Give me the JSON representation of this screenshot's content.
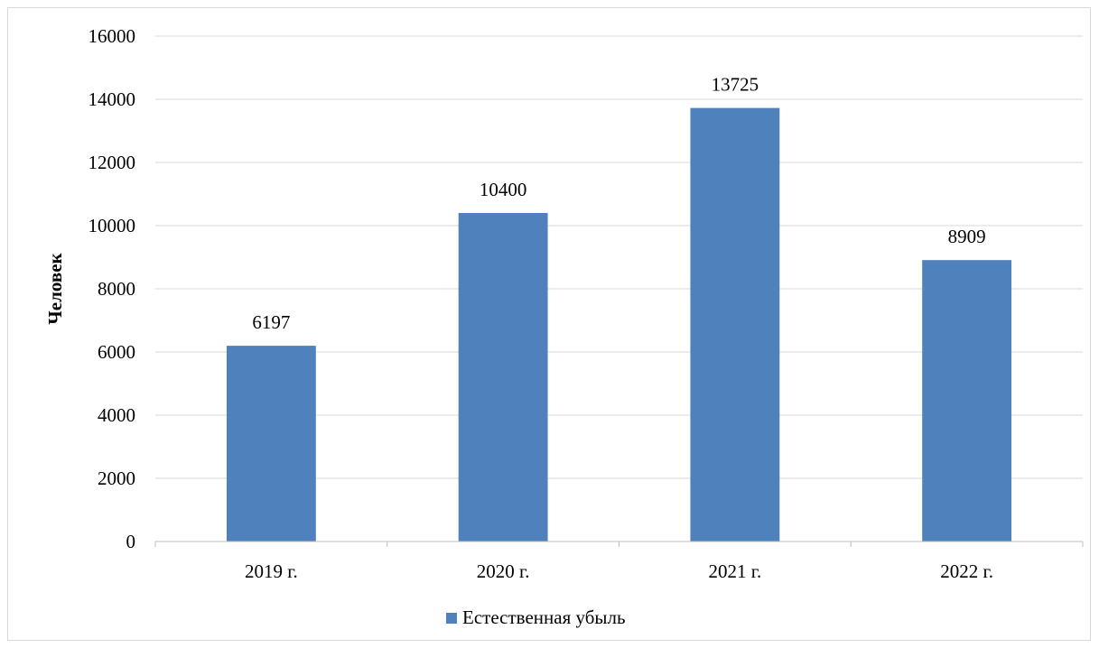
{
  "chart_data": {
    "type": "bar",
    "categories": [
      "2019 г.",
      "2020 г.",
      "2021 г.",
      "2022 г."
    ],
    "series": [
      {
        "name": "Естественная убыль",
        "values": [
          6197,
          10400,
          13725,
          8909
        ],
        "color": "#4f81bd"
      }
    ],
    "title": "",
    "xlabel": "",
    "ylabel": "Человек",
    "ylim": [
      0,
      16000
    ],
    "yticks": [
      0,
      2000,
      4000,
      6000,
      8000,
      10000,
      12000,
      14000,
      16000
    ],
    "grid": true,
    "legend_position": "bottom",
    "data_labels": true
  }
}
